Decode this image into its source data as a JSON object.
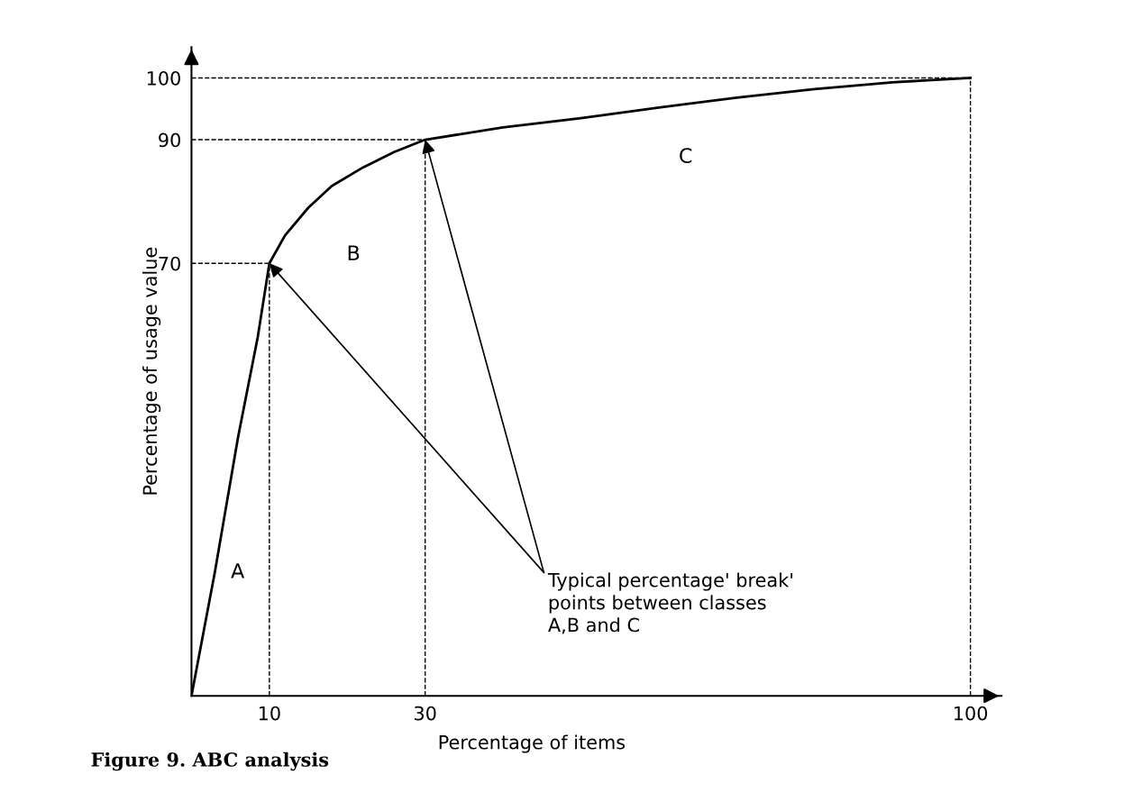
{
  "chart_data": {
    "type": "line",
    "title": "Figure 9. ABC analysis",
    "xlabel": "Percentage of items",
    "ylabel": "Percentage of usage value",
    "x": [
      0,
      3,
      6,
      8.5,
      10,
      12,
      15,
      18,
      22,
      26,
      30,
      40,
      50,
      60,
      70,
      80,
      90,
      100
    ],
    "series": [
      {
        "color": "#000000",
        "values": [
          0,
          20,
          42,
          58,
          70,
          74.5,
          79,
          82.5,
          85.5,
          88,
          90,
          92,
          93.5,
          95.2,
          96.8,
          98.2,
          99.3,
          100
        ]
      }
    ],
    "xlim": [
      0,
      104
    ],
    "ylim": [
      0,
      105
    ],
    "xticks": [
      10,
      30,
      100
    ],
    "yticks": [
      70,
      90,
      100
    ],
    "ref_lines": [
      {
        "axis": "y",
        "value": 70,
        "line_style": "dashed"
      },
      {
        "axis": "y",
        "value": 90,
        "line_style": "dashed"
      },
      {
        "axis": "y",
        "value": 100,
        "line_style": "dashed"
      },
      {
        "axis": "x",
        "value": 10,
        "line_style": "dashed"
      },
      {
        "axis": "x",
        "value": 30,
        "line_style": "dashed"
      },
      {
        "axis": "x",
        "value": 100,
        "line_style": "dashed"
      }
    ],
    "annotations": [
      "A",
      "B",
      "C",
      "Typical percentage' break'\npoints between classes\nA,B and C"
    ],
    "grid": false,
    "legend": false,
    "marker": "none",
    "line_style": "solid"
  }
}
